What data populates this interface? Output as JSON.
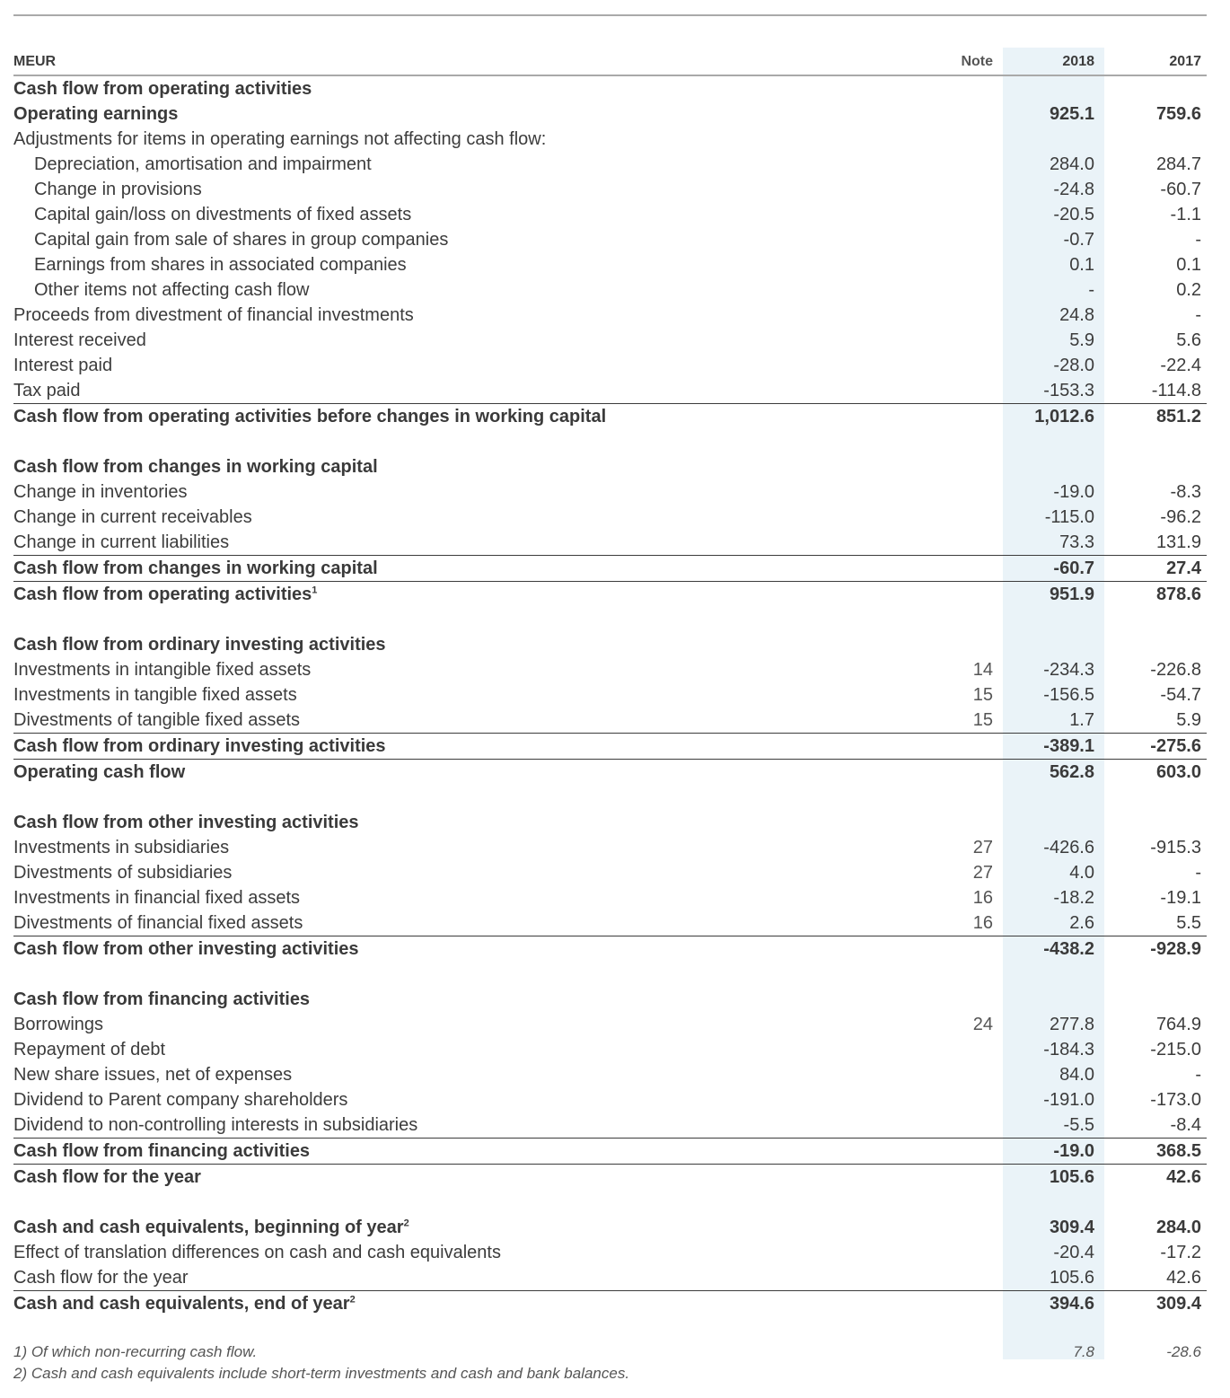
{
  "header": {
    "label": "MEUR",
    "note": "Note",
    "y1": "2018",
    "y2": "2017"
  },
  "sections": [
    {
      "rows": [
        {
          "label": "Cash flow from operating activities",
          "type": "head"
        },
        {
          "label": "Operating earnings",
          "type": "bold",
          "v2018": "925.1",
          "v2017": "759.6"
        },
        {
          "label": "Adjustments for items in operating earnings not affecting cash flow:",
          "type": "normal"
        },
        {
          "label": "Depreciation, amortisation and impairment",
          "type": "indent",
          "v2018": "284.0",
          "v2017": "284.7"
        },
        {
          "label": "Change in provisions",
          "type": "indent",
          "v2018": "-24.8",
          "v2017": "-60.7"
        },
        {
          "label": "Capital gain/loss on divestments of fixed assets",
          "type": "indent",
          "v2018": "-20.5",
          "v2017": "-1.1"
        },
        {
          "label": "Capital gain from sale of shares in group companies",
          "type": "indent",
          "v2018": "-0.7",
          "v2017": "-"
        },
        {
          "label": "Earnings from shares in associated companies",
          "type": "indent",
          "v2018": "0.1",
          "v2017": "0.1"
        },
        {
          "label": "Other items not affecting cash flow",
          "type": "indent",
          "v2018": "-",
          "v2017": "0.2"
        },
        {
          "label": "Proceeds from divestment of financial investments",
          "type": "normal",
          "v2018": "24.8",
          "v2017": "-"
        },
        {
          "label": "Interest received",
          "type": "normal",
          "v2018": "5.9",
          "v2017": "5.6"
        },
        {
          "label": "Interest paid",
          "type": "normal",
          "v2018": "-28.0",
          "v2017": "-22.4"
        },
        {
          "label": "Tax paid",
          "type": "normal",
          "v2018": "-153.3",
          "v2017": "-114.8"
        },
        {
          "label": "Cash flow from operating activities before changes in working capital",
          "type": "total",
          "v2018": "1,012.6",
          "v2017": "851.2"
        }
      ]
    },
    {
      "rows": [
        {
          "label": "Cash flow from changes in working capital",
          "type": "head"
        },
        {
          "label": "Change in inventories",
          "type": "normal",
          "v2018": "-19.0",
          "v2017": "-8.3"
        },
        {
          "label": "Change in current receivables",
          "type": "normal",
          "v2018": "-115.0",
          "v2017": "-96.2"
        },
        {
          "label": "Change in current liabilities",
          "type": "normal",
          "v2018": "73.3",
          "v2017": "131.9"
        },
        {
          "label": "Cash flow from changes in working capital",
          "type": "total",
          "v2018": "-60.7",
          "v2017": "27.4"
        },
        {
          "label": "Cash flow from operating activities",
          "sup": "1",
          "type": "total",
          "v2018": "951.9",
          "v2017": "878.6"
        }
      ]
    },
    {
      "rows": [
        {
          "label": "Cash flow from ordinary investing activities",
          "type": "head"
        },
        {
          "label": "Investments in intangible fixed assets",
          "type": "normal",
          "note": "14",
          "v2018": "-234.3",
          "v2017": "-226.8"
        },
        {
          "label": "Investments in tangible fixed assets",
          "type": "normal",
          "note": "15",
          "v2018": "-156.5",
          "v2017": "-54.7"
        },
        {
          "label": "Divestments of tangible fixed assets",
          "type": "normal",
          "note": "15",
          "v2018": "1.7",
          "v2017": "5.9"
        },
        {
          "label": "Cash flow from ordinary investing activities",
          "type": "total",
          "v2018": "-389.1",
          "v2017": "-275.6"
        },
        {
          "label": "Operating cash flow",
          "type": "total",
          "v2018": "562.8",
          "v2017": "603.0"
        }
      ]
    },
    {
      "rows": [
        {
          "label": "Cash flow from other investing activities",
          "type": "head"
        },
        {
          "label": "Investments in subsidiaries",
          "type": "normal",
          "note": "27",
          "v2018": "-426.6",
          "v2017": "-915.3"
        },
        {
          "label": "Divestments of subsidiaries",
          "type": "normal",
          "note": "27",
          "v2018": "4.0",
          "v2017": "-"
        },
        {
          "label": "Investments in financial fixed assets",
          "type": "normal",
          "note": "16",
          "v2018": "-18.2",
          "v2017": "-19.1"
        },
        {
          "label": "Divestments of financial fixed assets",
          "type": "normal",
          "note": "16",
          "v2018": "2.6",
          "v2017": "5.5"
        },
        {
          "label": "Cash flow from other investing activities",
          "type": "total",
          "v2018": "-438.2",
          "v2017": "-928.9"
        }
      ]
    },
    {
      "rows": [
        {
          "label": "Cash flow from financing activities",
          "type": "head"
        },
        {
          "label": "Borrowings",
          "type": "normal",
          "note": "24",
          "v2018": "277.8",
          "v2017": "764.9"
        },
        {
          "label": "Repayment of debt",
          "type": "normal",
          "v2018": "-184.3",
          "v2017": "-215.0"
        },
        {
          "label": "New share issues, net of expenses",
          "type": "normal",
          "v2018": "84.0",
          "v2017": "-"
        },
        {
          "label": "Dividend to Parent company shareholders",
          "type": "normal",
          "v2018": "-191.0",
          "v2017": "-173.0"
        },
        {
          "label": "Dividend to non-controlling interests in subsidiaries",
          "type": "normal",
          "v2018": "-5.5",
          "v2017": "-8.4"
        },
        {
          "label": "Cash flow from financing activities",
          "type": "total",
          "v2018": "-19.0",
          "v2017": "368.5"
        },
        {
          "label": "Cash flow for the year",
          "type": "total",
          "v2018": "105.6",
          "v2017": "42.6"
        }
      ]
    },
    {
      "rows": [
        {
          "label": "Cash and cash equivalents, beginning of year",
          "sup": "2",
          "type": "bold-light",
          "v2018": "309.4",
          "v2017": "284.0"
        },
        {
          "label": "Effect of translation differences on cash and cash equivalents",
          "type": "normal",
          "v2018": "-20.4",
          "v2017": "-17.2"
        },
        {
          "label": "Cash flow for the year",
          "type": "normal",
          "v2018": "105.6",
          "v2017": "42.6"
        },
        {
          "label": "Cash and cash equivalents, end of year",
          "sup": "2",
          "type": "total",
          "v2018": "394.6",
          "v2017": "309.4"
        }
      ]
    }
  ],
  "footnotes": [
    {
      "text": "1) Of which non-recurring cash flow.",
      "v2018": "7.8",
      "v2017": "-28.6"
    },
    {
      "text": "2) Cash and cash equivalents include short-term investments and cash and bank balances.",
      "v2018": "",
      "v2017": ""
    }
  ]
}
